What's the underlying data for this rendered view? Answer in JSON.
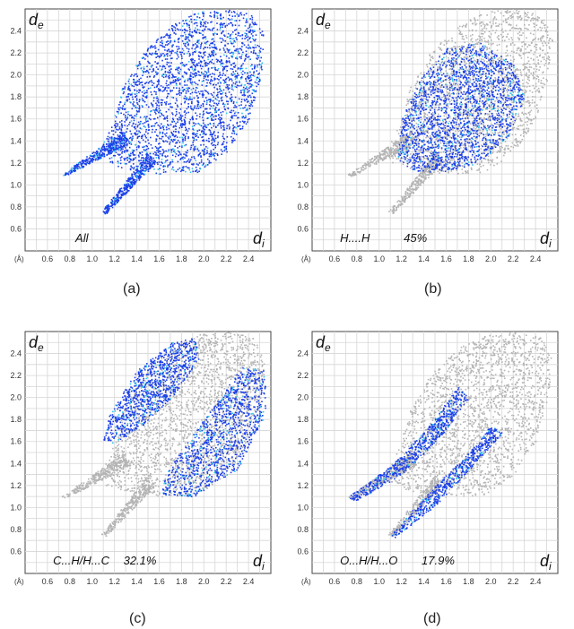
{
  "figure": {
    "panels": [
      {
        "caption": "(a)"
      },
      {
        "caption": "(b)"
      },
      {
        "caption": "(c)"
      },
      {
        "caption": "(d)"
      }
    ]
  },
  "chart_data": [
    {
      "type": "scatter",
      "subtype": "2D fingerprint plot",
      "title": "",
      "xlabel": "d",
      "xlabel_subscript": "i",
      "ylabel": "d",
      "ylabel_subscript": "e",
      "unit_label": "(Å)",
      "xlim": [
        0.4,
        2.6
      ],
      "ylim": [
        0.4,
        2.6
      ],
      "x_ticks": [
        "0.6",
        "0.8",
        "1.0",
        "1.2",
        "1.4",
        "1.6",
        "1.8",
        "2.0",
        "2.2",
        "2.4"
      ],
      "y_ticks": [
        "0.6",
        "0.8",
        "1.0",
        "1.2",
        "1.4",
        "1.6",
        "1.8",
        "2.0",
        "2.2",
        "2.4"
      ],
      "grid": true,
      "contact_label": "All",
      "percent": "",
      "colors": {
        "background_points": "#b4b4b4",
        "highlight_low": "#1c3fe8",
        "highlight_high": "#2fc4ee"
      },
      "regions": {
        "main_body": {
          "di": [
            1.05,
            2.55
          ],
          "de": [
            1.1,
            2.6
          ]
        },
        "spike_upper": {
          "from": {
            "di": 0.72,
            "de": 1.1
          },
          "to": {
            "di": 1.35,
            "de": 1.55
          }
        },
        "spike_lower": {
          "from": {
            "di": 1.1,
            "de": 0.76
          },
          "to": {
            "di": 1.55,
            "de": 1.35
          }
        }
      },
      "highlight": "all"
    },
    {
      "type": "scatter",
      "subtype": "2D fingerprint plot",
      "title": "",
      "xlabel": "d",
      "xlabel_subscript": "i",
      "ylabel": "d",
      "ylabel_subscript": "e",
      "unit_label": "(Å)",
      "xlim": [
        0.4,
        2.6
      ],
      "ylim": [
        0.4,
        2.6
      ],
      "x_ticks": [
        "0.6",
        "0.8",
        "1.0",
        "1.2",
        "1.4",
        "1.6",
        "1.8",
        "2.0",
        "2.2",
        "2.4"
      ],
      "y_ticks": [
        "0.6",
        "0.8",
        "1.0",
        "1.2",
        "1.4",
        "1.6",
        "1.8",
        "2.0",
        "2.2",
        "2.4"
      ],
      "grid": true,
      "contact_label": "H....H",
      "percent": "45%",
      "colors": {
        "background_points": "#b4b4b4",
        "highlight_low": "#1c3fe8",
        "highlight_high": "#2fc4ee"
      },
      "highlight": "H...H central region",
      "highlight_region": {
        "di": [
          1.1,
          2.3
        ],
        "de": [
          1.1,
          2.3
        ]
      }
    },
    {
      "type": "scatter",
      "subtype": "2D fingerprint plot",
      "title": "",
      "xlabel": "d",
      "xlabel_subscript": "i",
      "ylabel": "d",
      "ylabel_subscript": "e",
      "unit_label": "(Å)",
      "xlim": [
        0.4,
        2.6
      ],
      "ylim": [
        0.4,
        2.6
      ],
      "x_ticks": [
        "0.6",
        "0.8",
        "1.0",
        "1.2",
        "1.4",
        "1.6",
        "1.8",
        "2.0",
        "2.2",
        "2.4"
      ],
      "y_ticks": [
        "0.6",
        "0.8",
        "1.0",
        "1.2",
        "1.4",
        "1.6",
        "1.8",
        "2.0",
        "2.2",
        "2.4"
      ],
      "grid": true,
      "contact_label": "C...H/H...C",
      "percent": "32.1%",
      "colors": {
        "background_points": "#b4b4b4",
        "highlight_low": "#1c3fe8",
        "highlight_high": "#2fc4ee"
      },
      "highlight": "two wings",
      "wings": [
        {
          "from": {
            "di": 1.1,
            "de": 1.65
          },
          "to": {
            "di": 1.9,
            "de": 2.45
          }
        },
        {
          "from": {
            "di": 1.65,
            "de": 1.1
          },
          "to": {
            "di": 2.55,
            "de": 2.1
          }
        }
      ]
    },
    {
      "type": "scatter",
      "subtype": "2D fingerprint plot",
      "title": "",
      "xlabel": "d",
      "xlabel_subscript": "i",
      "ylabel": "d",
      "ylabel_subscript": "e",
      "unit_label": "(Å)",
      "xlim": [
        0.4,
        2.6
      ],
      "ylim": [
        0.4,
        2.6
      ],
      "x_ticks": [
        "0.6",
        "0.8",
        "1.0",
        "1.2",
        "1.4",
        "1.6",
        "1.8",
        "2.0",
        "2.2",
        "2.4"
      ],
      "y_ticks": [
        "0.6",
        "0.8",
        "1.0",
        "1.2",
        "1.4",
        "1.6",
        "1.8",
        "2.0",
        "2.2",
        "2.4"
      ],
      "grid": true,
      "contact_label": "O...H/H...O",
      "percent": "17.9%",
      "colors": {
        "background_points": "#b4b4b4",
        "highlight_low": "#1c3fe8",
        "highlight_high": "#2fc4ee"
      },
      "highlight": "two spikes",
      "spikes": [
        {
          "from": {
            "di": 0.72,
            "de": 1.1
          },
          "to": {
            "di": 1.55,
            "de": 1.9
          }
        },
        {
          "from": {
            "di": 1.1,
            "de": 0.76
          },
          "to": {
            "di": 1.9,
            "de": 1.6
          }
        }
      ]
    }
  ]
}
